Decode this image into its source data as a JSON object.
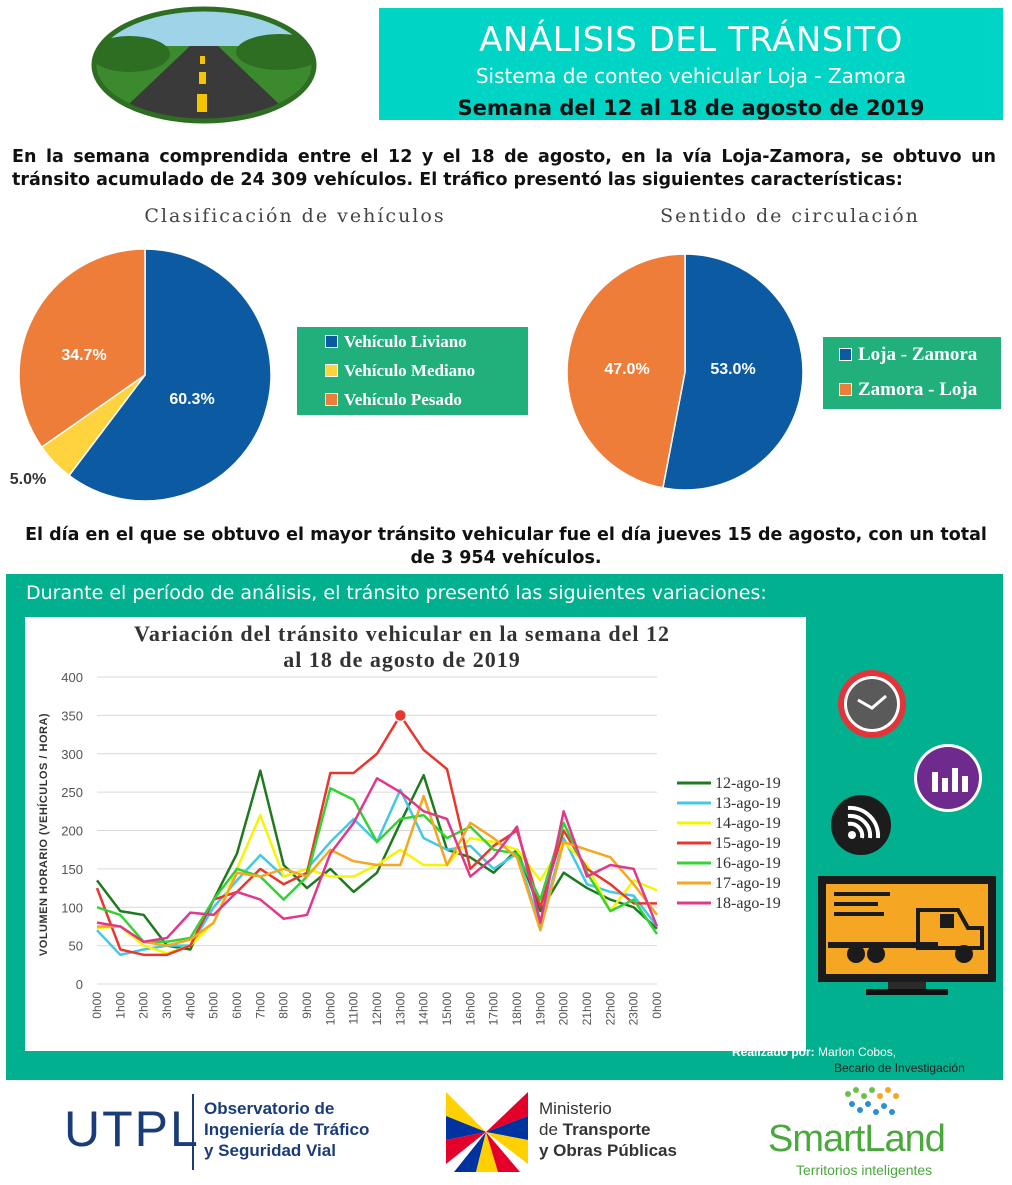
{
  "header": {
    "title": "ANÁLISIS DEL TRÁNSITO",
    "subtitle": "Sistema de conteo vehicular Loja - Zamora",
    "week": "Semana del 12 al 18 de agosto de 2019"
  },
  "intro_text": "En la semana comprendida entre el 12 y el 18 de agosto, en la vía Loja-Zamora, se obtuvo un tránsito acumulado de 24 309 vehículos. El tráfico presentó las siguientes características:",
  "peak_text": "El día en el que se obtuvo el mayor tránsito vehicular fue el día jueves 15 de agosto, con un total de 3 954 vehículos.",
  "panel_heading": "Durante el período de análisis, el tránsito presentó las siguientes variaciones:",
  "credit": {
    "label": "Realizado por:",
    "name": "Marlon Cobos,",
    "role": "Becario de Investigación"
  },
  "footer": {
    "utpl": "UTPL",
    "observatorio": [
      "Observatorio de",
      "Ingeniería de Tráfico",
      "y Seguridad Vial"
    ],
    "ministerio": [
      "Ministerio",
      "de",
      "Transporte",
      "y Obras Públicas"
    ],
    "smartland": "SmartLand",
    "smartland_tag": "Territorios inteligentes"
  },
  "colors": {
    "teal_banner": "#00d4c4",
    "teal_panel": "#00b08e",
    "legend_green": "#21b07c",
    "blue": "#0b5aa2",
    "yellow": "#ffd33d",
    "orange": "#ef7d3a"
  },
  "icons": [
    "road-logo",
    "clock-icon",
    "bar-chart-icon",
    "wifi-icon",
    "truck-monitor-icon"
  ],
  "chart_data": [
    {
      "type": "pie",
      "title": "Clasificación de vehículos",
      "categories": [
        "Vehículo Liviano",
        "Vehículo Mediano",
        "Vehículo Pesado"
      ],
      "values": [
        60.3,
        5.0,
        34.7
      ],
      "labels": [
        "60.3%",
        "5.0%",
        "34.7%"
      ],
      "colors": [
        "#0b5aa2",
        "#ffd33d",
        "#ef7d3a"
      ],
      "legend": "right"
    },
    {
      "type": "pie",
      "title": "Sentido de circulación",
      "categories": [
        "Loja - Zamora",
        "Zamora - Loja"
      ],
      "values": [
        53.0,
        47.0
      ],
      "labels": [
        "53.0%",
        "47.0%"
      ],
      "colors": [
        "#0b5aa2",
        "#ef7d3a"
      ],
      "legend": "right"
    },
    {
      "type": "line",
      "title": "Variación del tránsito vehicular en la semana del 12 al 18 de agosto de 2019",
      "ylabel": "VOLUMEN HORARIO (VEHÍCULOS / HORA)",
      "ylim": [
        0,
        400
      ],
      "yticks": [
        0,
        50,
        100,
        150,
        200,
        250,
        300,
        350,
        400
      ],
      "grid": true,
      "legend": "right",
      "x": [
        "0h00",
        "1h00",
        "2h00",
        "3h00",
        "4h00",
        "5h00",
        "6h00",
        "7h00",
        "8h00",
        "9h00",
        "10h00",
        "11h00",
        "12h00",
        "13h00",
        "14h00",
        "15h00",
        "16h00",
        "17h00",
        "18h00",
        "19h00",
        "20h00",
        "21h00",
        "22h00",
        "23h00",
        "0h00"
      ],
      "series": [
        {
          "name": "12-ago-19",
          "color": "#1f7a1f",
          "values": [
            135,
            95,
            90,
            50,
            45,
            110,
            170,
            278,
            155,
            125,
            150,
            120,
            145,
            210,
            272,
            175,
            165,
            145,
            175,
            95,
            145,
            125,
            110,
            100,
            72
          ]
        },
        {
          "name": "13-ago-19",
          "color": "#44c8e6",
          "values": [
            70,
            38,
            45,
            50,
            50,
            100,
            135,
            168,
            140,
            150,
            185,
            215,
            185,
            253,
            190,
            175,
            180,
            150,
            170,
            75,
            190,
            130,
            120,
            115,
            75
          ]
        },
        {
          "name": "14-ago-19",
          "color": "#f5f500",
          "values": [
            73,
            75,
            50,
            40,
            50,
            80,
            150,
            220,
            140,
            150,
            140,
            140,
            155,
            175,
            155,
            155,
            190,
            185,
            175,
            135,
            185,
            155,
            95,
            135,
            122
          ]
        },
        {
          "name": "15-ago-19",
          "color": "#e8372e",
          "values": [
            125,
            45,
            38,
            38,
            50,
            110,
            120,
            150,
            130,
            145,
            275,
            275,
            300,
            350,
            305,
            280,
            150,
            180,
            200,
            100,
            200,
            150,
            130,
            105,
            105
          ]
        },
        {
          "name": "16-ago-19",
          "color": "#36d136",
          "values": [
            100,
            90,
            55,
            55,
            60,
            110,
            150,
            140,
            110,
            140,
            255,
            240,
            185,
            215,
            220,
            190,
            205,
            175,
            170,
            110,
            210,
            145,
            95,
            110,
            65
          ]
        },
        {
          "name": "17-ago-19",
          "color": "#f5a623",
          "values": [
            75,
            75,
            55,
            50,
            58,
            80,
            145,
            140,
            150,
            140,
            175,
            160,
            155,
            155,
            245,
            155,
            210,
            190,
            165,
            70,
            185,
            175,
            165,
            130,
            90
          ]
        },
        {
          "name": "18-ago-19",
          "color": "#e0388c",
          "values": [
            80,
            75,
            55,
            60,
            93,
            90,
            120,
            110,
            85,
            90,
            170,
            210,
            268,
            250,
            225,
            215,
            140,
            165,
            205,
            80,
            225,
            140,
            155,
            150,
            75
          ]
        }
      ],
      "annotation": {
        "series": "15-ago-19",
        "x": "13h00",
        "y": 350
      }
    }
  ]
}
